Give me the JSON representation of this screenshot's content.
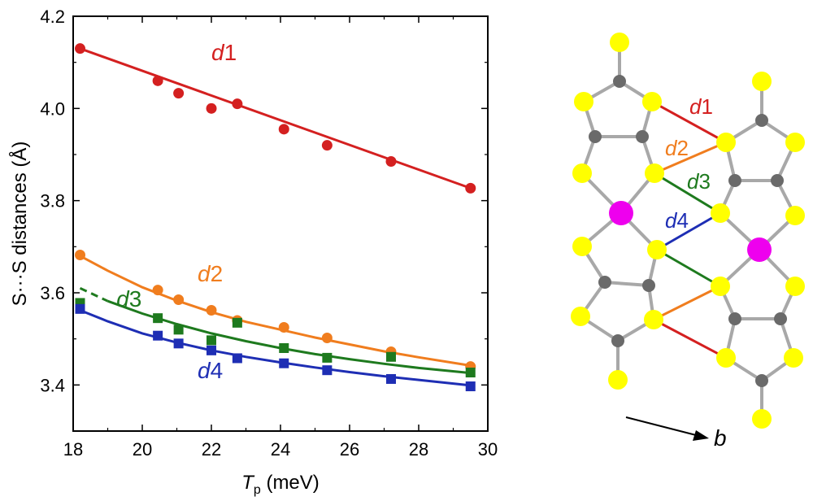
{
  "chart_data": {
    "type": "scatter",
    "title": "",
    "xlabel_main": "T",
    "xlabel_sub": "p",
    "xlabel_unit": " (meV)",
    "ylabel": "S···S distances (Å)",
    "xlim": [
      18,
      30
    ],
    "ylim": [
      3.3,
      4.2
    ],
    "xticks": [
      18,
      20,
      22,
      24,
      26,
      28,
      30
    ],
    "xtick_labels": [
      "18",
      "20",
      "22",
      "24",
      "26",
      "28",
      "30"
    ],
    "yticks": [
      3.4,
      3.6,
      3.8,
      4.0,
      4.2
    ],
    "ytick_labels": [
      "3.4",
      "3.6",
      "3.8",
      "4.0",
      "4.2"
    ],
    "grid": false,
    "series": [
      {
        "name": "d1",
        "color": "#d42020",
        "marker": "circle",
        "x": [
          18.2,
          20.45,
          21.05,
          22.0,
          22.75,
          24.1,
          25.35,
          27.2,
          29.5
        ],
        "y": [
          4.13,
          4.06,
          4.033,
          4.0,
          4.01,
          3.955,
          3.92,
          3.885,
          3.827
        ],
        "fit": {
          "x": [
            18.2,
            29.5
          ],
          "y": [
            4.13,
            3.827
          ]
        }
      },
      {
        "name": "d2",
        "color": "#f07d1e",
        "marker": "circle",
        "x": [
          18.2,
          20.45,
          21.05,
          22.0,
          22.75,
          24.1,
          25.35,
          27.2,
          29.5
        ],
        "y": [
          3.682,
          3.606,
          3.585,
          3.562,
          3.54,
          3.525,
          3.502,
          3.472,
          3.44
        ],
        "fit": {
          "x": [
            18.2,
            19.0,
            20.0,
            21.0,
            22.0,
            23.0,
            24.0,
            25.0,
            26.0,
            27.0,
            28.0,
            29.5
          ],
          "y": [
            3.68,
            3.648,
            3.612,
            3.583,
            3.558,
            3.537,
            3.52,
            3.503,
            3.488,
            3.473,
            3.46,
            3.442
          ]
        }
      },
      {
        "name": "d3",
        "color": "#1e7a1e",
        "marker": "square",
        "x": [
          18.2,
          20.45,
          21.05,
          22.0,
          22.75,
          24.1,
          25.35,
          27.2,
          29.5
        ],
        "y": [
          3.578,
          3.545,
          3.52,
          3.497,
          3.535,
          3.48,
          3.459,
          3.461,
          3.427
        ],
        "fit": {
          "x": [
            18.2,
            19.0,
            20.0,
            21.0,
            22.0,
            23.0,
            24.0,
            25.0,
            26.0,
            27.0,
            28.0,
            29.5
          ],
          "y": [
            3.61,
            3.582,
            3.555,
            3.532,
            3.512,
            3.495,
            3.48,
            3.467,
            3.456,
            3.446,
            3.437,
            3.426
          ]
        },
        "fit_dashed_until": 19.0
      },
      {
        "name": "d4",
        "color": "#1e2eb4",
        "marker": "square",
        "x": [
          18.2,
          20.45,
          21.05,
          22.0,
          22.75,
          24.1,
          25.35,
          27.2,
          29.5
        ],
        "y": [
          3.565,
          3.507,
          3.49,
          3.475,
          3.458,
          3.447,
          3.432,
          3.413,
          3.397
        ],
        "fit": {
          "x": [
            18.2,
            19.0,
            20.0,
            21.0,
            22.0,
            23.0,
            24.0,
            25.0,
            26.0,
            27.0,
            28.0,
            29.5
          ],
          "y": [
            3.562,
            3.538,
            3.512,
            3.492,
            3.475,
            3.461,
            3.449,
            3.438,
            3.428,
            3.419,
            3.411,
            3.399
          ]
        }
      }
    ],
    "annotations": [
      {
        "series": "d1",
        "letter": "d",
        "number": "1",
        "x": 22.0,
        "y": 4.105
      },
      {
        "series": "d2",
        "letter": "d",
        "number": "2",
        "x": 21.6,
        "y": 3.625
      },
      {
        "series": "d3",
        "letter": "d",
        "number": "3",
        "x": 19.25,
        "y": 3.57
      },
      {
        "series": "d4",
        "letter": "d",
        "number": "4",
        "x": 21.6,
        "y": 3.415
      }
    ]
  },
  "structure": {
    "bond_color": "#a8a8a8",
    "sulfur_color": "#ffff00",
    "carbon_color": "#6a6a6a",
    "metal_color": "#ee00ee",
    "contacts": [
      {
        "letter": "d",
        "number": "1",
        "color": "#d42020"
      },
      {
        "letter": "d",
        "number": "2",
        "color": "#f07d1e"
      },
      {
        "letter": "d",
        "number": "3",
        "color": "#1e7a1e"
      },
      {
        "letter": "d",
        "number": "4",
        "color": "#1e2eb4"
      }
    ],
    "axis_label": "b"
  }
}
